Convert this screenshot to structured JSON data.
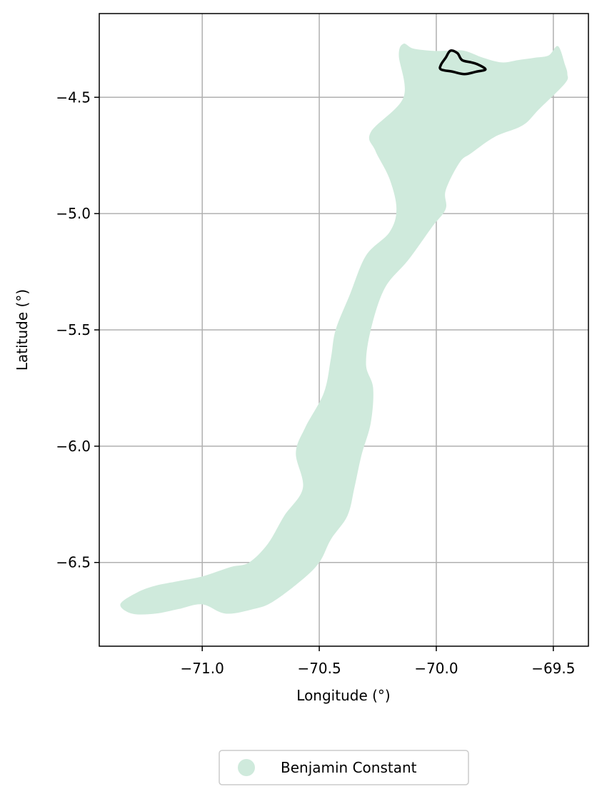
{
  "chart_data": {
    "type": "map",
    "xlabel": "Longitude (°)",
    "ylabel": "Latitude (°)",
    "xlim": [
      -71.44,
      -69.35
    ],
    "ylim": [
      -6.86,
      -4.14
    ],
    "xticks": [
      -71.0,
      -70.5,
      -70.0,
      -69.5
    ],
    "xtick_labels": [
      "−71.0",
      "−70.5",
      "−70.0",
      "−69.5"
    ],
    "yticks": [
      -4.5,
      -5.0,
      -5.5,
      -6.0,
      -6.5
    ],
    "ytick_labels": [
      "−4.5",
      "−5.0",
      "−5.5",
      "−6.0",
      "−6.5"
    ],
    "grid": true,
    "legend": {
      "placement": "bottom-center below plot",
      "entries": [
        {
          "label": "Benjamin Constant",
          "color": "#cfeadc"
        }
      ]
    },
    "region": {
      "name": "Benjamin Constant",
      "fill": "#cfeadc",
      "outline": [
        [
          -69.45,
          -4.36
        ],
        [
          -69.48,
          -4.28
        ],
        [
          -69.52,
          -4.32
        ],
        [
          -69.58,
          -4.33
        ],
        [
          -69.65,
          -4.34
        ],
        [
          -69.72,
          -4.35
        ],
        [
          -69.8,
          -4.33
        ],
        [
          -69.88,
          -4.3
        ],
        [
          -69.95,
          -4.3
        ],
        [
          -70.02,
          -4.3
        ],
        [
          -70.1,
          -4.29
        ],
        [
          -70.14,
          -4.27
        ],
        [
          -70.16,
          -4.32
        ],
        [
          -70.14,
          -4.5
        ],
        [
          -70.28,
          -4.65
        ],
        [
          -70.26,
          -4.73
        ],
        [
          -70.2,
          -4.85
        ],
        [
          -70.17,
          -4.98
        ],
        [
          -70.2,
          -5.08
        ],
        [
          -70.3,
          -5.18
        ],
        [
          -70.37,
          -5.35
        ],
        [
          -70.43,
          -5.5
        ],
        [
          -70.45,
          -5.62
        ],
        [
          -70.48,
          -5.77
        ],
        [
          -70.56,
          -5.92
        ],
        [
          -70.6,
          -6.03
        ],
        [
          -70.57,
          -6.18
        ],
        [
          -70.65,
          -6.3
        ],
        [
          -70.72,
          -6.42
        ],
        [
          -70.8,
          -6.5
        ],
        [
          -70.88,
          -6.52
        ],
        [
          -71.0,
          -6.56
        ],
        [
          -71.1,
          -6.58
        ],
        [
          -71.2,
          -6.6
        ],
        [
          -71.28,
          -6.63
        ],
        [
          -71.35,
          -6.68
        ],
        [
          -71.3,
          -6.72
        ],
        [
          -71.2,
          -6.72
        ],
        [
          -71.1,
          -6.7
        ],
        [
          -71.0,
          -6.68
        ],
        [
          -70.9,
          -6.72
        ],
        [
          -70.78,
          -6.7
        ],
        [
          -70.7,
          -6.67
        ],
        [
          -70.58,
          -6.58
        ],
        [
          -70.5,
          -6.5
        ],
        [
          -70.45,
          -6.4
        ],
        [
          -70.38,
          -6.3
        ],
        [
          -70.35,
          -6.18
        ],
        [
          -70.32,
          -6.04
        ],
        [
          -70.28,
          -5.9
        ],
        [
          -70.27,
          -5.75
        ],
        [
          -70.3,
          -5.65
        ],
        [
          -70.28,
          -5.5
        ],
        [
          -70.22,
          -5.32
        ],
        [
          -70.12,
          -5.2
        ],
        [
          -70.02,
          -5.06
        ],
        [
          -69.96,
          -4.98
        ],
        [
          -69.96,
          -4.9
        ],
        [
          -69.9,
          -4.78
        ],
        [
          -69.85,
          -4.74
        ],
        [
          -69.75,
          -4.67
        ],
        [
          -69.63,
          -4.62
        ],
        [
          -69.56,
          -4.55
        ],
        [
          -69.45,
          -4.44
        ],
        [
          -69.44,
          -4.4
        ]
      ]
    },
    "highlight": {
      "stroke": "#000000",
      "outline": [
        [
          -69.96,
          -4.33
        ],
        [
          -69.94,
          -4.3
        ],
        [
          -69.91,
          -4.31
        ],
        [
          -69.89,
          -4.34
        ],
        [
          -69.85,
          -4.35
        ],
        [
          -69.82,
          -4.36
        ],
        [
          -69.79,
          -4.38
        ],
        [
          -69.83,
          -4.39
        ],
        [
          -69.88,
          -4.4
        ],
        [
          -69.93,
          -4.39
        ],
        [
          -69.98,
          -4.38
        ],
        [
          -69.98,
          -4.36
        ]
      ]
    }
  }
}
